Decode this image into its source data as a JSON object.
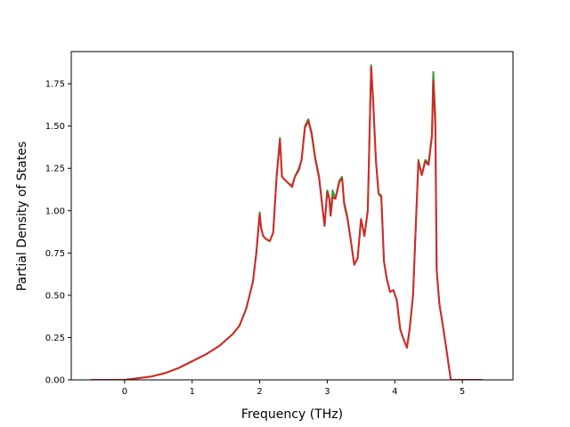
{
  "chart_data": {
    "type": "line",
    "title": "",
    "xlabel": "Frequency (THz)",
    "ylabel": "Partial Density of States",
    "xlim": [
      -0.79,
      5.75
    ],
    "ylim": [
      0.0,
      1.94
    ],
    "xticks": [
      0,
      1,
      2,
      3,
      4,
      5
    ],
    "xtick_labels": [
      "0",
      "1",
      "2",
      "3",
      "4",
      "5"
    ],
    "yticks": [
      0.0,
      0.25,
      0.5,
      0.75,
      1.0,
      1.25,
      1.5,
      1.75
    ],
    "ytick_labels": [
      "0.00",
      "0.25",
      "0.50",
      "0.75",
      "1.00",
      "1.25",
      "1.50",
      "1.75"
    ],
    "grid": false,
    "legend": "none",
    "series": [
      {
        "color": "#2ca02c",
        "points": [
          [
            -0.5,
            0.0
          ],
          [
            0.0,
            0.0
          ],
          [
            0.2,
            0.01
          ],
          [
            0.4,
            0.02
          ],
          [
            0.6,
            0.04
          ],
          [
            0.8,
            0.07
          ],
          [
            1.0,
            0.11
          ],
          [
            1.2,
            0.15
          ],
          [
            1.4,
            0.2
          ],
          [
            1.6,
            0.27
          ],
          [
            1.7,
            0.32
          ],
          [
            1.8,
            0.42
          ],
          [
            1.9,
            0.58
          ],
          [
            1.95,
            0.75
          ],
          [
            2.0,
            0.99
          ],
          [
            2.02,
            0.9
          ],
          [
            2.05,
            0.85
          ],
          [
            2.1,
            0.83
          ],
          [
            2.15,
            0.82
          ],
          [
            2.2,
            0.87
          ],
          [
            2.25,
            1.2
          ],
          [
            2.3,
            1.43
          ],
          [
            2.33,
            1.2
          ],
          [
            2.38,
            1.18
          ],
          [
            2.43,
            1.16
          ],
          [
            2.48,
            1.15
          ],
          [
            2.52,
            1.2
          ],
          [
            2.58,
            1.25
          ],
          [
            2.62,
            1.3
          ],
          [
            2.67,
            1.5
          ],
          [
            2.72,
            1.54
          ],
          [
            2.77,
            1.46
          ],
          [
            2.82,
            1.32
          ],
          [
            2.88,
            1.2
          ],
          [
            2.92,
            1.05
          ],
          [
            2.96,
            0.91
          ],
          [
            3.0,
            1.12
          ],
          [
            3.03,
            1.08
          ],
          [
            3.05,
            0.97
          ],
          [
            3.08,
            1.12
          ],
          [
            3.12,
            1.07
          ],
          [
            3.18,
            1.18
          ],
          [
            3.22,
            1.2
          ],
          [
            3.25,
            1.05
          ],
          [
            3.3,
            0.96
          ],
          [
            3.35,
            0.82
          ],
          [
            3.4,
            0.68
          ],
          [
            3.45,
            0.72
          ],
          [
            3.5,
            0.95
          ],
          [
            3.55,
            0.85
          ],
          [
            3.6,
            1.0
          ],
          [
            3.65,
            1.86
          ],
          [
            3.68,
            1.65
          ],
          [
            3.72,
            1.3
          ],
          [
            3.76,
            1.1
          ],
          [
            3.8,
            1.09
          ],
          [
            3.84,
            0.7
          ],
          [
            3.88,
            0.6
          ],
          [
            3.93,
            0.52
          ],
          [
            3.98,
            0.53
          ],
          [
            4.03,
            0.47
          ],
          [
            4.08,
            0.3
          ],
          [
            4.12,
            0.25
          ],
          [
            4.18,
            0.19
          ],
          [
            4.22,
            0.3
          ],
          [
            4.27,
            0.5
          ],
          [
            4.3,
            0.8
          ],
          [
            4.35,
            1.3
          ],
          [
            4.4,
            1.21
          ],
          [
            4.45,
            1.3
          ],
          [
            4.5,
            1.28
          ],
          [
            4.55,
            1.45
          ],
          [
            4.57,
            1.82
          ],
          [
            4.6,
            1.55
          ],
          [
            4.62,
            0.65
          ],
          [
            4.66,
            0.45
          ],
          [
            4.7,
            0.35
          ],
          [
            4.75,
            0.22
          ],
          [
            4.8,
            0.08
          ],
          [
            4.83,
            0.0
          ],
          [
            5.0,
            0.0
          ],
          [
            5.3,
            0.0
          ]
        ]
      },
      {
        "color": "#d62728",
        "points": [
          [
            -0.5,
            0.0
          ],
          [
            0.0,
            0.0
          ],
          [
            0.2,
            0.01
          ],
          [
            0.4,
            0.02
          ],
          [
            0.6,
            0.04
          ],
          [
            0.8,
            0.07
          ],
          [
            1.0,
            0.11
          ],
          [
            1.2,
            0.15
          ],
          [
            1.4,
            0.2
          ],
          [
            1.6,
            0.27
          ],
          [
            1.7,
            0.32
          ],
          [
            1.8,
            0.42
          ],
          [
            1.9,
            0.58
          ],
          [
            1.95,
            0.75
          ],
          [
            2.0,
            0.98
          ],
          [
            2.02,
            0.9
          ],
          [
            2.05,
            0.85
          ],
          [
            2.1,
            0.83
          ],
          [
            2.15,
            0.82
          ],
          [
            2.2,
            0.87
          ],
          [
            2.25,
            1.2
          ],
          [
            2.3,
            1.42
          ],
          [
            2.33,
            1.2
          ],
          [
            2.38,
            1.18
          ],
          [
            2.43,
            1.16
          ],
          [
            2.48,
            1.14
          ],
          [
            2.52,
            1.2
          ],
          [
            2.58,
            1.24
          ],
          [
            2.62,
            1.3
          ],
          [
            2.67,
            1.49
          ],
          [
            2.72,
            1.53
          ],
          [
            2.77,
            1.45
          ],
          [
            2.82,
            1.31
          ],
          [
            2.88,
            1.19
          ],
          [
            2.92,
            1.05
          ],
          [
            2.96,
            0.91
          ],
          [
            3.0,
            1.11
          ],
          [
            3.03,
            1.07
          ],
          [
            3.05,
            0.97
          ],
          [
            3.08,
            1.08
          ],
          [
            3.12,
            1.07
          ],
          [
            3.18,
            1.17
          ],
          [
            3.22,
            1.19
          ],
          [
            3.25,
            1.04
          ],
          [
            3.3,
            0.95
          ],
          [
            3.35,
            0.82
          ],
          [
            3.4,
            0.68
          ],
          [
            3.45,
            0.72
          ],
          [
            3.5,
            0.95
          ],
          [
            3.55,
            0.85
          ],
          [
            3.6,
            1.0
          ],
          [
            3.65,
            1.85
          ],
          [
            3.68,
            1.64
          ],
          [
            3.72,
            1.3
          ],
          [
            3.76,
            1.1
          ],
          [
            3.8,
            1.08
          ],
          [
            3.84,
            0.7
          ],
          [
            3.88,
            0.6
          ],
          [
            3.93,
            0.52
          ],
          [
            3.98,
            0.53
          ],
          [
            4.03,
            0.47
          ],
          [
            4.08,
            0.3
          ],
          [
            4.12,
            0.25
          ],
          [
            4.18,
            0.19
          ],
          [
            4.22,
            0.3
          ],
          [
            4.27,
            0.5
          ],
          [
            4.3,
            0.8
          ],
          [
            4.35,
            1.29
          ],
          [
            4.4,
            1.21
          ],
          [
            4.45,
            1.29
          ],
          [
            4.5,
            1.27
          ],
          [
            4.55,
            1.44
          ],
          [
            4.57,
            1.77
          ],
          [
            4.6,
            1.5
          ],
          [
            4.62,
            0.65
          ],
          [
            4.66,
            0.45
          ],
          [
            4.7,
            0.35
          ],
          [
            4.75,
            0.22
          ],
          [
            4.8,
            0.08
          ],
          [
            4.83,
            0.0
          ],
          [
            5.0,
            0.0
          ],
          [
            5.3,
            0.0
          ]
        ]
      }
    ]
  }
}
